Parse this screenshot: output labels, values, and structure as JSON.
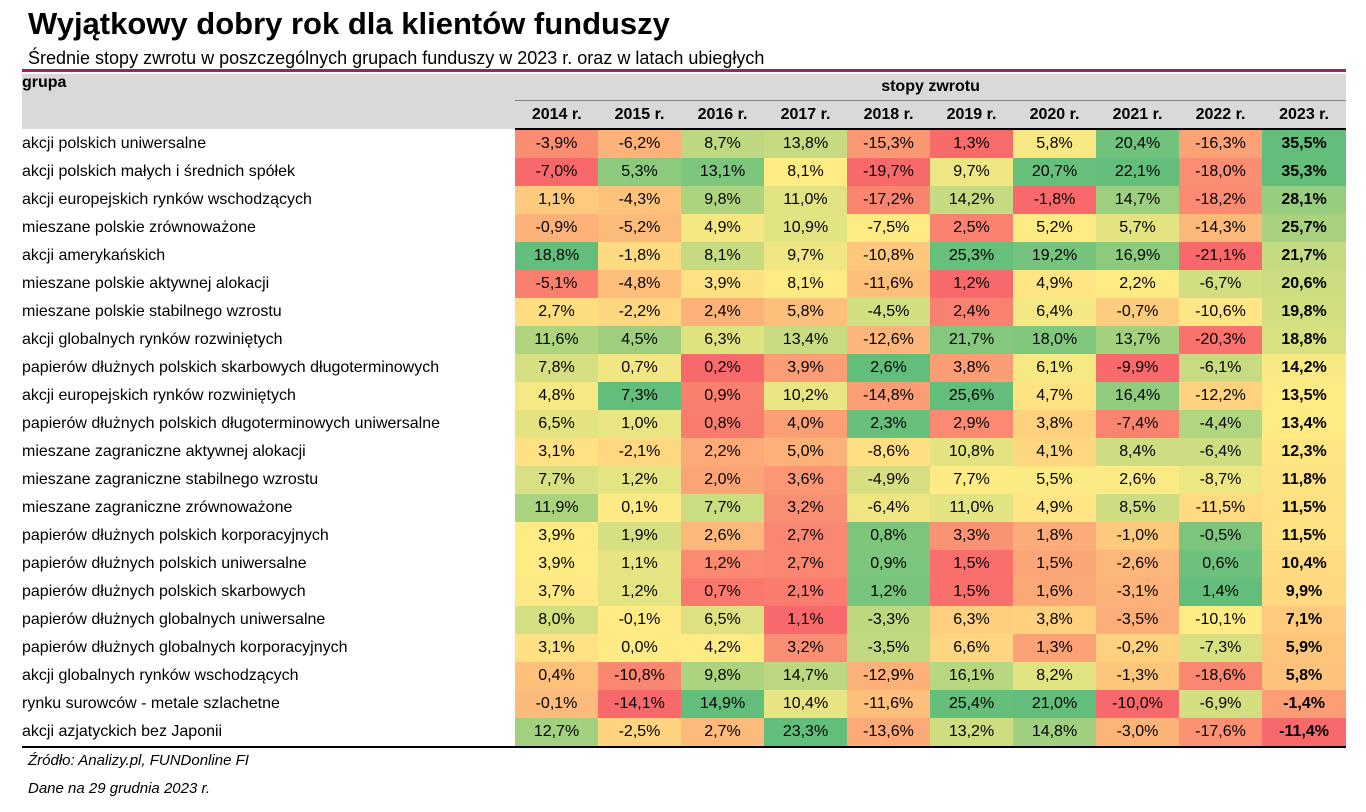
{
  "header": {
    "title": "Wyjątkowy dobry rok dla klientów funduszy",
    "subtitle": "Średnie stopy zwrotu w poszczególnych grupach funduszy w 2023 r. oraz w latach ubiegłych"
  },
  "table": {
    "group_header": "grupa",
    "returns_header": "stopy zwrotu",
    "years": [
      "2014 r.",
      "2015 r.",
      "2016 r.",
      "2017 r.",
      "2018 r.",
      "2019 r.",
      "2020 r.",
      "2021 r.",
      "2022 r.",
      "2023 r."
    ]
  },
  "chart_data": {
    "type": "heatmap",
    "title": "Wyjątkowy dobry rok dla klientów funduszy",
    "subtitle": "Średnie stopy zwrotu w poszczególnych grupach funduszy w 2023 r. oraz w latach ubiegłych",
    "unit": "%",
    "color_scale": {
      "low": "#f8696b",
      "mid": "#ffeb84",
      "high": "#63be7b"
    },
    "columns": [
      "2014 r.",
      "2015 r.",
      "2016 r.",
      "2017 r.",
      "2018 r.",
      "2019 r.",
      "2020 r.",
      "2021 r.",
      "2022 r.",
      "2023 r."
    ],
    "rows": [
      {
        "group": "akcji polskich uniwersalne",
        "values": [
          -3.9,
          -6.2,
          8.7,
          13.8,
          -15.3,
          1.3,
          5.8,
          20.4,
          -16.3,
          35.5
        ]
      },
      {
        "group": "akcji polskich małych i średnich spółek",
        "values": [
          -7.0,
          5.3,
          13.1,
          8.1,
          -19.7,
          9.7,
          20.7,
          22.1,
          -18.0,
          35.3
        ]
      },
      {
        "group": "akcji europejskich rynków wschodzących",
        "values": [
          1.1,
          -4.3,
          9.8,
          11.0,
          -17.2,
          14.2,
          -1.8,
          14.7,
          -18.2,
          28.1
        ]
      },
      {
        "group": "mieszane polskie zrównoważone",
        "values": [
          -0.9,
          -5.2,
          4.9,
          10.9,
          -7.5,
          2.5,
          5.2,
          5.7,
          -14.3,
          25.7
        ]
      },
      {
        "group": "akcji amerykańskich",
        "values": [
          18.8,
          -1.8,
          8.1,
          9.7,
          -10.8,
          25.3,
          19.2,
          16.9,
          -21.1,
          21.7
        ]
      },
      {
        "group": "mieszane polskie aktywnej alokacji",
        "values": [
          -5.1,
          -4.8,
          3.9,
          8.1,
          -11.6,
          1.2,
          4.9,
          2.2,
          -6.7,
          20.6
        ]
      },
      {
        "group": "mieszane polskie stabilnego wzrostu",
        "values": [
          2.7,
          -2.2,
          2.4,
          5.8,
          -4.5,
          2.4,
          6.4,
          -0.7,
          -10.6,
          19.8
        ]
      },
      {
        "group": "akcji globalnych rynków rozwiniętych",
        "values": [
          11.6,
          4.5,
          6.3,
          13.4,
          -12.6,
          21.7,
          18.0,
          13.7,
          -20.3,
          18.8
        ]
      },
      {
        "group": "papierów dłużnych polskich skarbowych długoterminowych",
        "values": [
          7.8,
          0.7,
          0.2,
          3.9,
          2.6,
          3.8,
          6.1,
          -9.9,
          -6.1,
          14.2
        ]
      },
      {
        "group": "akcji europejskich rynków rozwiniętych",
        "values": [
          4.8,
          7.3,
          0.9,
          10.2,
          -14.8,
          25.6,
          4.7,
          16.4,
          -12.2,
          13.5
        ]
      },
      {
        "group": "papierów dłużnych polskich długoterminowych uniwersalne",
        "values": [
          6.5,
          1.0,
          0.8,
          4.0,
          2.3,
          2.9,
          3.8,
          -7.4,
          -4.4,
          13.4
        ]
      },
      {
        "group": "mieszane zagraniczne aktywnej alokacji",
        "values": [
          3.1,
          -2.1,
          2.2,
          5.0,
          -8.6,
          10.8,
          4.1,
          8.4,
          -6.4,
          12.3
        ]
      },
      {
        "group": "mieszane zagraniczne stabilnego wzrostu",
        "values": [
          7.7,
          1.2,
          2.0,
          3.6,
          -4.9,
          7.7,
          5.5,
          2.6,
          -8.7,
          11.8
        ]
      },
      {
        "group": "mieszane zagraniczne zrównoważone",
        "values": [
          11.9,
          0.1,
          7.7,
          3.2,
          -6.4,
          11.0,
          4.9,
          8.5,
          -11.5,
          11.5
        ]
      },
      {
        "group": "papierów dłużnych polskich korporacyjnych",
        "values": [
          3.9,
          1.9,
          2.6,
          2.7,
          0.8,
          3.3,
          1.8,
          -1.0,
          -0.5,
          11.5
        ]
      },
      {
        "group": "papierów dłużnych polskich uniwersalne",
        "values": [
          3.9,
          1.1,
          1.2,
          2.7,
          0.9,
          1.5,
          1.5,
          -2.6,
          0.6,
          10.4
        ]
      },
      {
        "group": "papierów dłużnych polskich skarbowych",
        "values": [
          3.7,
          1.2,
          0.7,
          2.1,
          1.2,
          1.5,
          1.6,
          -3.1,
          1.4,
          9.9
        ]
      },
      {
        "group": "papierów dłużnych globalnych uniwersalne",
        "values": [
          8.0,
          -0.1,
          6.5,
          1.1,
          -3.3,
          6.3,
          3.8,
          -3.5,
          -10.1,
          7.1
        ]
      },
      {
        "group": "papierów dłużnych globalnych korporacyjnych",
        "values": [
          3.1,
          0.0,
          4.2,
          3.2,
          -3.5,
          6.6,
          1.3,
          -0.2,
          -7.3,
          5.9
        ]
      },
      {
        "group": "akcji globalnych rynków wschodzących",
        "values": [
          0.4,
          -10.8,
          9.8,
          14.7,
          -12.9,
          16.1,
          8.2,
          -1.3,
          -18.6,
          5.8
        ]
      },
      {
        "group": "rynku surowców - metale szlachetne",
        "values": [
          -0.1,
          -14.1,
          14.9,
          10.4,
          -11.6,
          25.4,
          21.0,
          -10.0,
          -6.9,
          -1.4
        ]
      },
      {
        "group": "akcji azjatyckich bez Japonii",
        "values": [
          12.7,
          -2.5,
          2.7,
          23.3,
          -13.6,
          13.2,
          14.8,
          -3.0,
          -17.6,
          -11.4
        ]
      }
    ]
  },
  "footer": {
    "source": "Źródło: Analizy.pl, FUNDonline FI",
    "date_note": "Dane na 29 grudnia 2023 r."
  }
}
